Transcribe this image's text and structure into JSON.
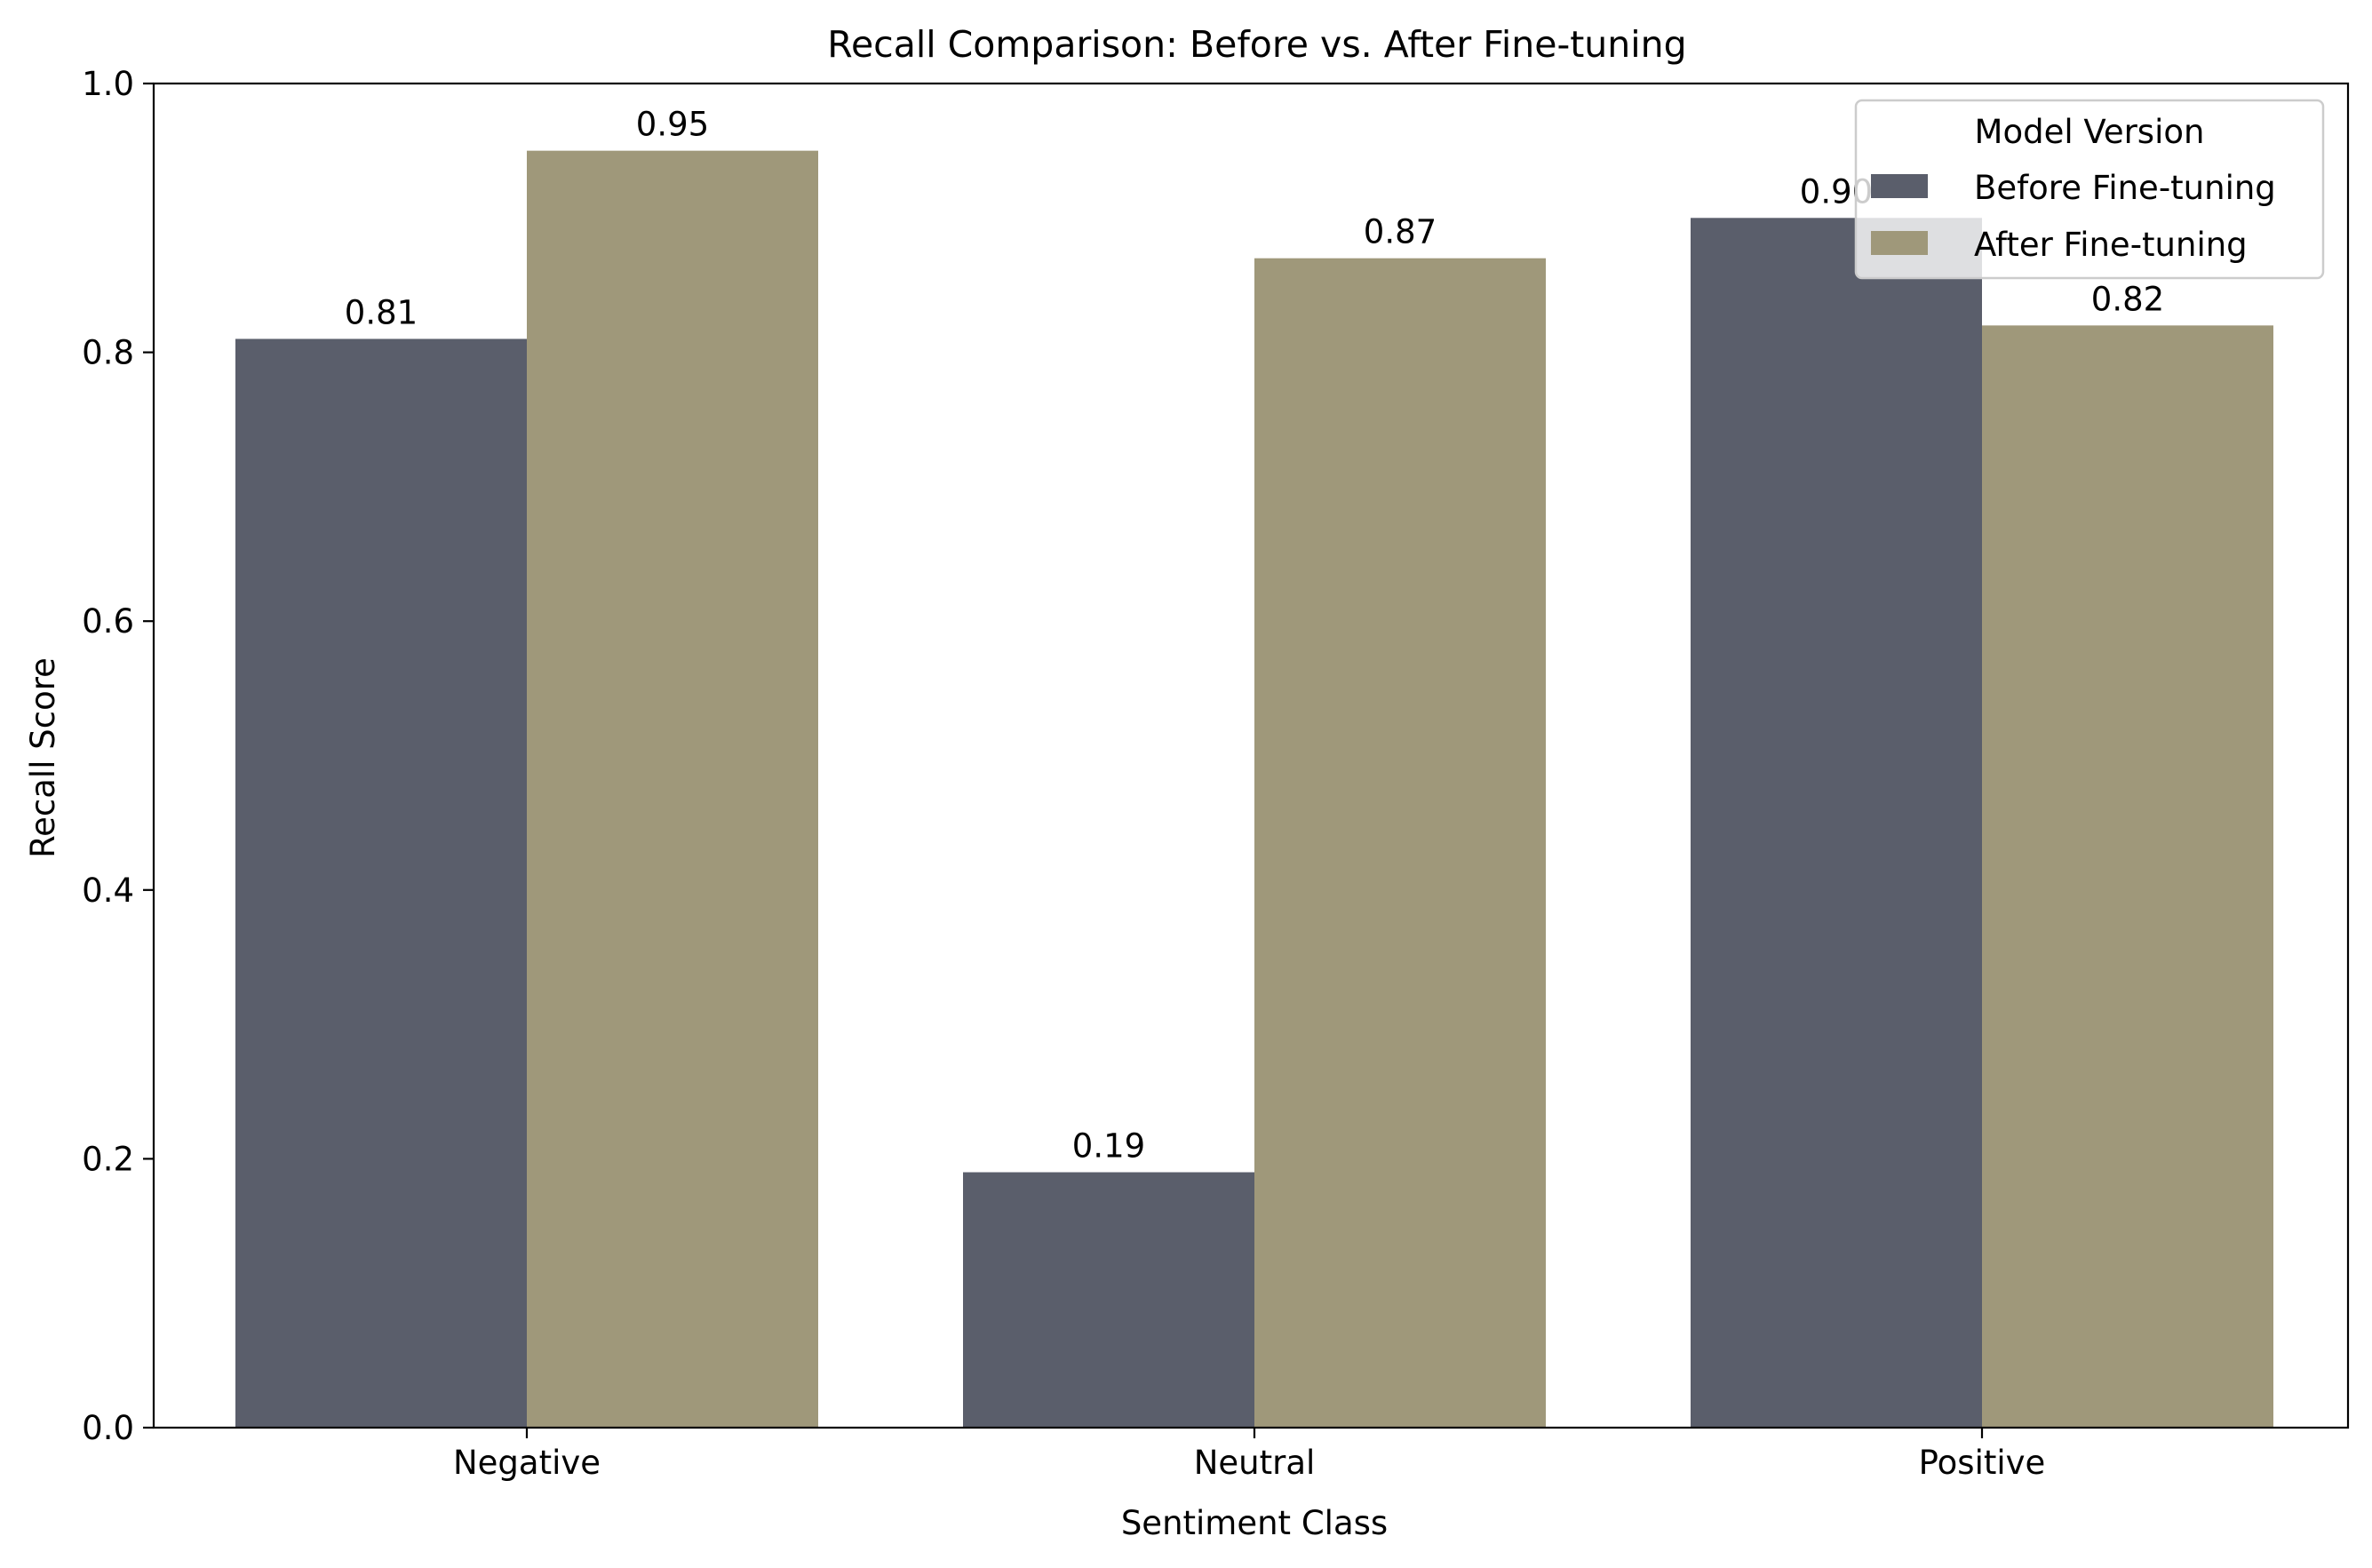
{
  "chart_data": {
    "type": "bar",
    "title": "Recall Comparison: Before vs. After Fine-tuning",
    "xlabel": "Sentiment Class",
    "ylabel": "Recall Score",
    "categories": [
      "Negative",
      "Neutral",
      "Positive"
    ],
    "series": [
      {
        "name": "Before Fine-tuning",
        "values": [
          0.81,
          0.19,
          0.9
        ],
        "color": "#5a5e6b"
      },
      {
        "name": "After Fine-tuning",
        "values": [
          0.95,
          0.87,
          0.82
        ],
        "color": "#9f987a"
      }
    ],
    "ylim": [
      0,
      1.0
    ],
    "yticks": [
      0.0,
      0.2,
      0.4,
      0.6,
      0.8,
      1.0
    ],
    "ytick_labels": [
      "0.0",
      "0.2",
      "0.4",
      "0.6",
      "0.8",
      "1.0"
    ],
    "data_labels": [
      [
        "0.81",
        "0.19",
        "0.90"
      ],
      [
        "0.95",
        "0.87",
        "0.82"
      ]
    ],
    "grid": false,
    "legend": {
      "title": "Model Version",
      "placement": "top-right"
    }
  }
}
